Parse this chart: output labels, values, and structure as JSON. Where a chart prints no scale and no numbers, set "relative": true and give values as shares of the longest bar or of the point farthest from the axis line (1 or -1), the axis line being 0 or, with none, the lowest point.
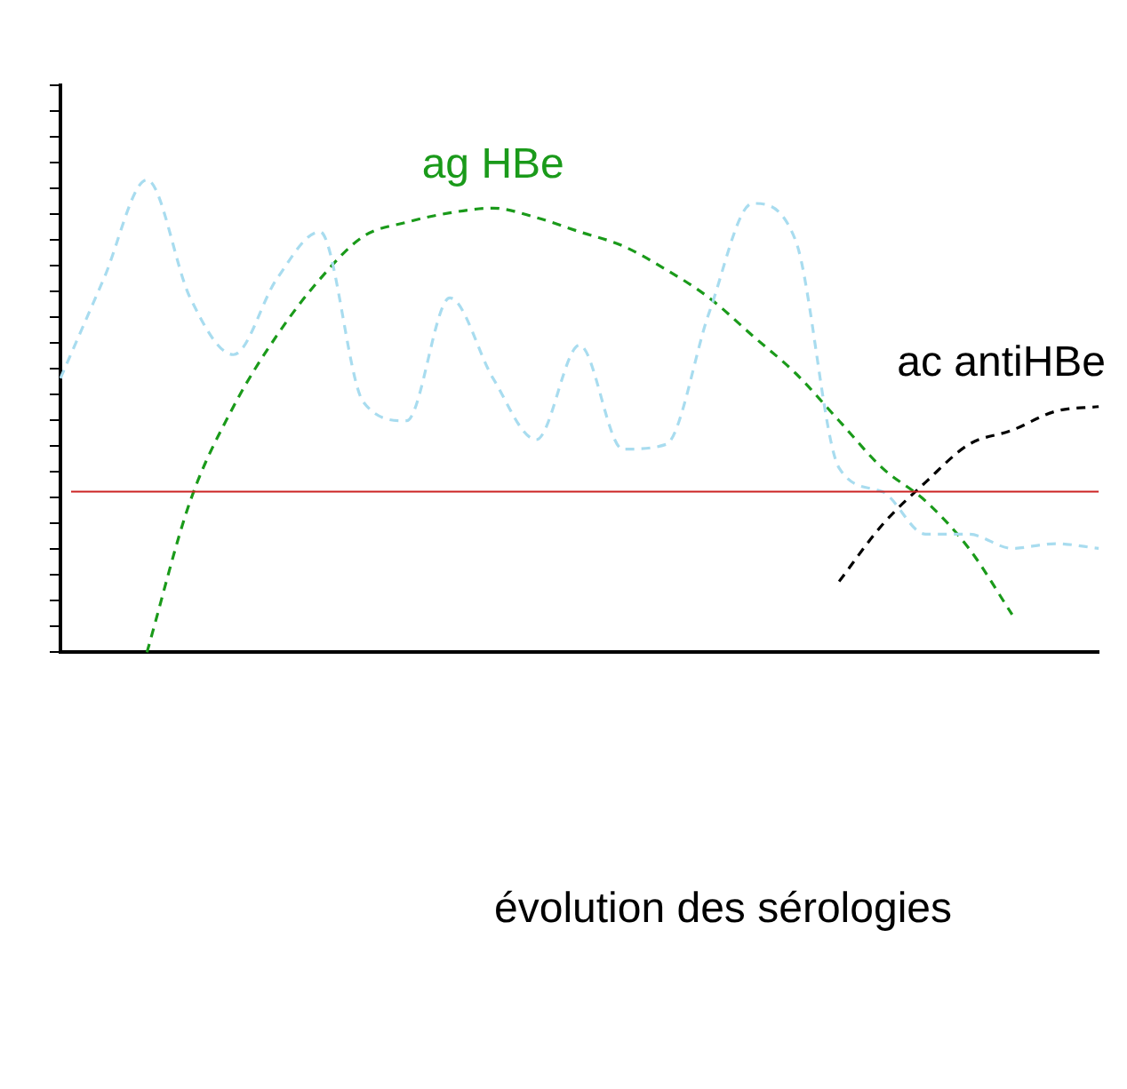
{
  "chart_data": {
    "type": "line",
    "title": "évolution des sérologies",
    "relative": true,
    "legend": false,
    "grid": false,
    "line_style": "dashed",
    "marker": "none",
    "categories": [
      null,
      null,
      null,
      null,
      null,
      null,
      null,
      null,
      null,
      null,
      null,
      null,
      null,
      null,
      null,
      null,
      null,
      null,
      null,
      null,
      null,
      null,
      null,
      null,
      null
    ],
    "series": [
      {
        "color": "#a8dcef",
        "values": [
          0.58,
          0.79,
          1.0,
          0.75,
          0.63,
          0.79,
          0.89,
          0.53,
          0.49,
          0.75,
          0.58,
          0.45,
          0.65,
          0.43,
          0.44,
          0.72,
          0.95,
          0.87,
          0.39,
          0.34,
          0.25,
          0.25,
          0.22,
          0.23,
          0.22
        ]
      },
      {
        "name": "ag HBe",
        "color": "#1a9a1a",
        "values": [
          null,
          null,
          0.0,
          0.32,
          0.52,
          0.67,
          0.79,
          0.88,
          0.91,
          0.93,
          0.94,
          0.92,
          0.89,
          0.86,
          0.81,
          0.75,
          0.67,
          0.59,
          0.49,
          0.39,
          0.32,
          0.22,
          0.08,
          null,
          null
        ]
      },
      {
        "name": "ac antiHBe",
        "color": "#000000",
        "values": [
          null,
          null,
          null,
          null,
          null,
          null,
          null,
          null,
          null,
          null,
          null,
          null,
          null,
          null,
          null,
          null,
          null,
          null,
          0.15,
          0.27,
          0.36,
          0.44,
          0.47,
          0.51,
          0.52
        ]
      }
    ],
    "ref_lines": [
      {
        "axis": "y",
        "value": 0.34,
        "color": "#cc2222"
      }
    ]
  }
}
